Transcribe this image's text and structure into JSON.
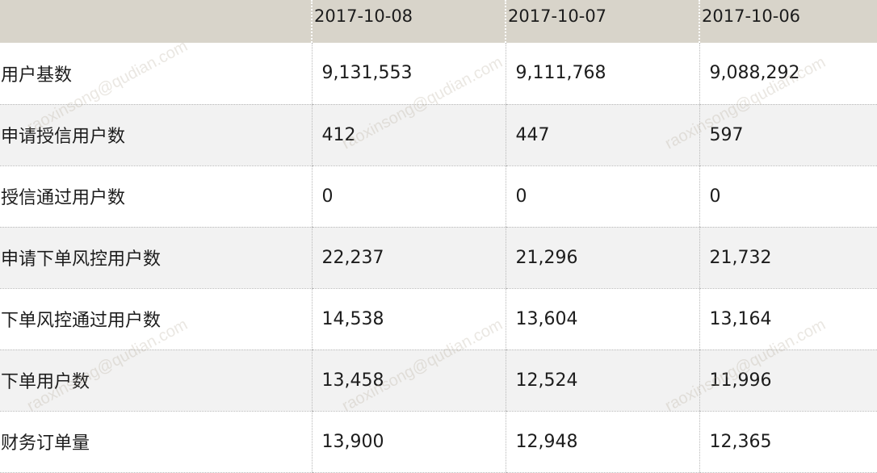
{
  "table": {
    "headers": [
      "",
      "2017-10-08",
      "2017-10-07",
      "2017-10-06"
    ],
    "rows": [
      {
        "label": "用户基数",
        "values": [
          "9,131,553",
          "9,111,768",
          "9,088,292"
        ]
      },
      {
        "label": "申请授信用户数",
        "values": [
          "412",
          "447",
          "597"
        ]
      },
      {
        "label": "授信通过用户数",
        "values": [
          "0",
          "0",
          "0"
        ]
      },
      {
        "label": "申请下单风控用户数",
        "values": [
          "22,237",
          "21,296",
          "21,732"
        ]
      },
      {
        "label": "下单风控通过用户数",
        "values": [
          "14,538",
          "13,604",
          "13,164"
        ]
      },
      {
        "label": "下单用户数",
        "values": [
          "13,458",
          "12,524",
          "11,996"
        ]
      },
      {
        "label": "财务订单量",
        "values": [
          "13,900",
          "12,948",
          "12,365"
        ]
      }
    ]
  },
  "watermark": {
    "text": "raoxinsong@qudian.com"
  },
  "colors": {
    "header_bg": "#d8d4ca",
    "row_alt_bg": "#f2f2f2",
    "text": "#1c1c1c"
  }
}
